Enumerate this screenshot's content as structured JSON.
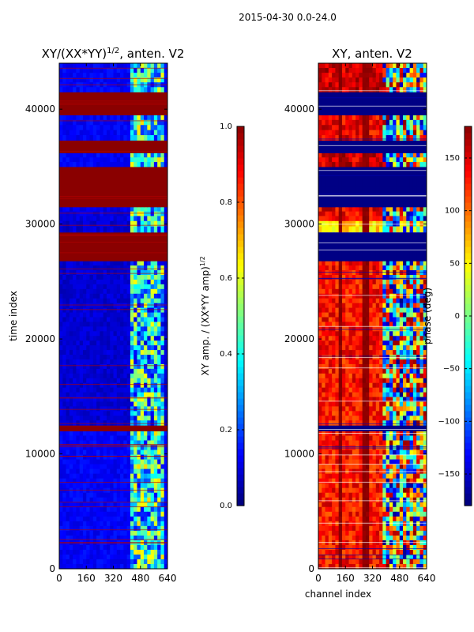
{
  "figure_title": "2015-04-30 0.0-24.0",
  "chart_data": [
    {
      "type": "heatmap",
      "title": "XY/(XX*YY)",
      "title_superscript": "1/2",
      "title_suffix": ", anten. V2",
      "xlabel": "",
      "ylabel": "time index",
      "xlim": [
        0,
        640
      ],
      "ylim": [
        0,
        44000
      ],
      "xticks": [
        0,
        160,
        320,
        480,
        640
      ],
      "yticks": [
        0,
        10000,
        20000,
        30000,
        40000
      ],
      "colormap": "jet",
      "colorbar": {
        "label": "XY amp. / (XX*YY amp)",
        "label_superscript": "1/2",
        "range": [
          0.0,
          1.0
        ],
        "ticks": [
          "0.0",
          "0.2",
          "0.4",
          "0.6",
          "0.8",
          "1.0"
        ]
      },
      "description_bands": [
        {
          "t0": 0,
          "t1": 12000,
          "base": 0.12
        },
        {
          "t0": 12000,
          "t1": 12500,
          "base": 0.99
        },
        {
          "t0": 12500,
          "t1": 26800,
          "base": 0.08
        },
        {
          "t0": 26800,
          "t1": 29300,
          "base": 0.99
        },
        {
          "t0": 29300,
          "t1": 30300,
          "base": 0.08
        },
        {
          "t0": 30300,
          "t1": 31500,
          "base": 0.1
        },
        {
          "t0": 31500,
          "t1": 35000,
          "base": 0.99
        },
        {
          "t0": 35000,
          "t1": 36200,
          "base": 0.12
        },
        {
          "t0": 36200,
          "t1": 37300,
          "base": 0.99
        },
        {
          "t0": 37300,
          "t1": 39500,
          "base": 0.12
        },
        {
          "t0": 39500,
          "t1": 41500,
          "base": 0.99
        },
        {
          "t0": 41500,
          "t1": 44000,
          "base": 0.12
        }
      ]
    },
    {
      "type": "heatmap",
      "title": "XY, anten. V2",
      "xlabel": "channel index",
      "ylabel": "",
      "xlim": [
        0,
        640
      ],
      "ylim": [
        0,
        44000
      ],
      "xticks": [
        0,
        160,
        320,
        480,
        640
      ],
      "yticks": [
        0,
        10000,
        20000,
        30000,
        40000
      ],
      "colormap": "jet",
      "colorbar": {
        "label": "phase (deg)",
        "range": [
          -180,
          180
        ],
        "ticks": [
          "−150",
          "−100",
          "−50",
          "0",
          "50",
          "100",
          "150"
        ]
      },
      "description_bands": [
        {
          "t0": 0,
          "t1": 12000,
          "base": 130
        },
        {
          "t0": 12000,
          "t1": 12500,
          "base": -178
        },
        {
          "t0": 12500,
          "t1": 26800,
          "base": 130
        },
        {
          "t0": 26800,
          "t1": 29300,
          "base": -178
        },
        {
          "t0": 29300,
          "t1": 30300,
          "base": 60
        },
        {
          "t0": 30300,
          "t1": 31500,
          "base": 140
        },
        {
          "t0": 31500,
          "t1": 35000,
          "base": -178
        },
        {
          "t0": 35000,
          "t1": 36200,
          "base": 150
        },
        {
          "t0": 36200,
          "t1": 37300,
          "base": -178
        },
        {
          "t0": 37300,
          "t1": 39500,
          "base": 140
        },
        {
          "t0": 39500,
          "t1": 41500,
          "base": -178
        },
        {
          "t0": 41500,
          "t1": 44000,
          "base": 150
        }
      ]
    }
  ]
}
